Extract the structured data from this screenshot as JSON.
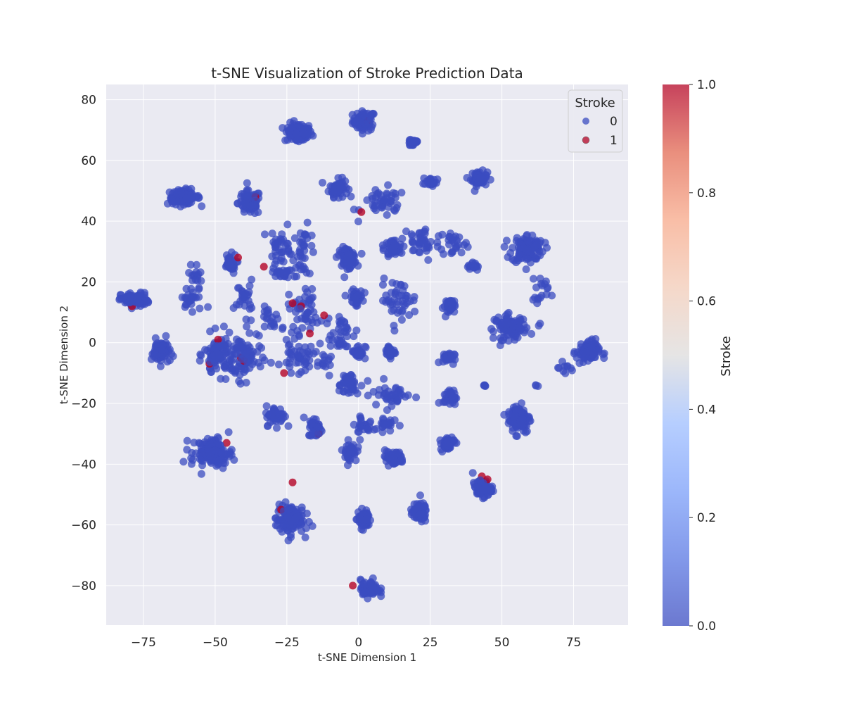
{
  "chart_data": {
    "type": "scatter",
    "title": "t-SNE Visualization of Stroke Prediction Data",
    "xlabel": "t-SNE Dimension 1",
    "ylabel": "t-SNE Dimension 2",
    "xlim": [
      -88,
      94
    ],
    "ylim": [
      -93,
      85
    ],
    "xticks": [
      -75,
      -50,
      -25,
      0,
      25,
      50,
      75
    ],
    "yticks": [
      -80,
      -60,
      -40,
      -20,
      0,
      20,
      40,
      60,
      80
    ],
    "grid": true,
    "colormap": "coolwarm",
    "colors": {
      "class0": "#3b4cc0",
      "class1": "#b40426",
      "plot_bg": "#eaeaf2",
      "grid": "#ffffff"
    },
    "legend": {
      "title": "Stroke",
      "placement": "top-right",
      "entries": [
        {
          "label": "0",
          "color": "#3b4cc0"
        },
        {
          "label": "1",
          "color": "#b40426"
        }
      ]
    },
    "colorbar": {
      "label": "Stroke",
      "range": [
        0.0,
        1.0
      ],
      "ticks": [
        "0.0",
        "0.2",
        "0.4",
        "0.6",
        "0.8",
        "1.0"
      ]
    },
    "series": [
      {
        "name": "0",
        "clusters": [
          {
            "cx": 2,
            "cy": 73,
            "sx": 2.5,
            "sy": 2.0,
            "n": 60
          },
          {
            "cx": -21,
            "cy": 69,
            "sx": 3.0,
            "sy": 2.0,
            "n": 80
          },
          {
            "cx": 19,
            "cy": 66,
            "sx": 1.5,
            "sy": 1.0,
            "n": 18
          },
          {
            "cx": -7,
            "cy": 51,
            "sx": 2.0,
            "sy": 1.8,
            "n": 45
          },
          {
            "cx": 25,
            "cy": 53,
            "sx": 1.5,
            "sy": 1.2,
            "n": 18
          },
          {
            "cx": 42,
            "cy": 54,
            "sx": 1.8,
            "sy": 1.5,
            "n": 45
          },
          {
            "cx": -61,
            "cy": 48,
            "sx": 3.5,
            "sy": 1.5,
            "n": 90
          },
          {
            "cx": -38,
            "cy": 46,
            "sx": 2.5,
            "sy": 2.5,
            "n": 60
          },
          {
            "cx": 9,
            "cy": 46,
            "sx": 5.0,
            "sy": 3.0,
            "n": 35
          },
          {
            "cx": -27,
            "cy": 32,
            "sx": 2.5,
            "sy": 4.5,
            "n": 28
          },
          {
            "cx": -19,
            "cy": 30,
            "sx": 2.5,
            "sy": 5.0,
            "n": 28
          },
          {
            "cx": -4,
            "cy": 28,
            "sx": 2.0,
            "sy": 2.0,
            "n": 55
          },
          {
            "cx": 12,
            "cy": 31,
            "sx": 2.0,
            "sy": 2.0,
            "n": 40
          },
          {
            "cx": 22,
            "cy": 33,
            "sx": 4.0,
            "sy": 4.0,
            "n": 30
          },
          {
            "cx": 33,
            "cy": 33,
            "sx": 3.0,
            "sy": 3.0,
            "n": 20
          },
          {
            "cx": 59,
            "cy": 31,
            "sx": 3.5,
            "sy": 3.0,
            "n": 90
          },
          {
            "cx": -45,
            "cy": 26,
            "sx": 1.5,
            "sy": 2.0,
            "n": 30
          },
          {
            "cx": -57,
            "cy": 22,
            "sx": 1.5,
            "sy": 3.0,
            "n": 12
          },
          {
            "cx": -27,
            "cy": 23,
            "sx": 2.0,
            "sy": 1.0,
            "n": 18
          },
          {
            "cx": 40,
            "cy": 25,
            "sx": 1.2,
            "sy": 1.0,
            "n": 15
          },
          {
            "cx": -78,
            "cy": 14,
            "sx": 3.0,
            "sy": 1.5,
            "n": 70
          },
          {
            "cx": -58,
            "cy": 14,
            "sx": 3.0,
            "sy": 3.0,
            "n": 20
          },
          {
            "cx": -40,
            "cy": 15,
            "sx": 2.0,
            "sy": 3.5,
            "n": 20
          },
          {
            "cx": -19,
            "cy": 11,
            "sx": 3.5,
            "sy": 5.0,
            "n": 35
          },
          {
            "cx": -1,
            "cy": 15,
            "sx": 1.5,
            "sy": 1.5,
            "n": 35
          },
          {
            "cx": 14,
            "cy": 14,
            "sx": 4.0,
            "sy": 4.0,
            "n": 35
          },
          {
            "cx": 32,
            "cy": 12,
            "sx": 1.5,
            "sy": 1.5,
            "n": 28
          },
          {
            "cx": -30,
            "cy": 7,
            "sx": 2.5,
            "sy": 3.0,
            "n": 18
          },
          {
            "cx": 53,
            "cy": 5,
            "sx": 3.5,
            "sy": 2.5,
            "n": 80
          },
          {
            "cx": 63,
            "cy": 17,
            "sx": 2.0,
            "sy": 6.0,
            "n": 15
          },
          {
            "cx": -69,
            "cy": -3,
            "sx": 2.0,
            "sy": 2.5,
            "n": 55
          },
          {
            "cx": -49,
            "cy": -4,
            "sx": 3.0,
            "sy": 4.0,
            "n": 70
          },
          {
            "cx": -40,
            "cy": -5,
            "sx": 4.0,
            "sy": 5.0,
            "n": 70
          },
          {
            "cx": -21,
            "cy": -5,
            "sx": 3.5,
            "sy": 3.0,
            "n": 35
          },
          {
            "cx": -6,
            "cy": 3,
            "sx": 3.5,
            "sy": 3.5,
            "n": 30
          },
          {
            "cx": 0,
            "cy": -3,
            "sx": 1.5,
            "sy": 1.5,
            "n": 22
          },
          {
            "cx": 11,
            "cy": -3,
            "sx": 1.5,
            "sy": 1.2,
            "n": 22
          },
          {
            "cx": 31,
            "cy": -5,
            "sx": 1.5,
            "sy": 1.2,
            "n": 20
          },
          {
            "cx": 80,
            "cy": -3,
            "sx": 2.5,
            "sy": 2.5,
            "n": 60
          },
          {
            "cx": -12,
            "cy": -7,
            "sx": 1.5,
            "sy": 1.5,
            "n": 10
          },
          {
            "cx": -4,
            "cy": -14,
            "sx": 3.0,
            "sy": 2.5,
            "n": 30
          },
          {
            "cx": 12,
            "cy": -17,
            "sx": 4.5,
            "sy": 3.0,
            "n": 30
          },
          {
            "cx": 32,
            "cy": -18,
            "sx": 1.5,
            "sy": 1.5,
            "n": 25
          },
          {
            "cx": 56,
            "cy": -25,
            "sx": 2.5,
            "sy": 3.0,
            "n": 95
          },
          {
            "cx": -29,
            "cy": -24,
            "sx": 2.0,
            "sy": 2.0,
            "n": 40
          },
          {
            "cx": -15,
            "cy": -28,
            "sx": 1.5,
            "sy": 2.0,
            "n": 35
          },
          {
            "cx": 2,
            "cy": -28,
            "sx": 3.0,
            "sy": 3.0,
            "n": 20
          },
          {
            "cx": 10,
            "cy": -26,
            "sx": 2.0,
            "sy": 2.0,
            "n": 15
          },
          {
            "cx": -3,
            "cy": -36,
            "sx": 1.5,
            "sy": 2.0,
            "n": 30
          },
          {
            "cx": 12,
            "cy": -38,
            "sx": 2.5,
            "sy": 1.5,
            "n": 40
          },
          {
            "cx": 31,
            "cy": -33,
            "sx": 1.5,
            "sy": 1.5,
            "n": 40
          },
          {
            "cx": -51,
            "cy": -36,
            "sx": 4.5,
            "sy": 3.0,
            "n": 100
          },
          {
            "cx": 43,
            "cy": -48,
            "sx": 2.0,
            "sy": 1.8,
            "n": 55
          },
          {
            "cx": -24,
            "cy": -58,
            "sx": 3.0,
            "sy": 3.0,
            "n": 100
          },
          {
            "cx": 2,
            "cy": -58,
            "sx": 1.5,
            "sy": 2.0,
            "n": 45
          },
          {
            "cx": 21,
            "cy": -56,
            "sx": 1.8,
            "sy": 2.0,
            "n": 55
          },
          {
            "cx": 4,
            "cy": -81,
            "sx": 2.0,
            "sy": 1.8,
            "n": 55
          },
          {
            "cx": 72,
            "cy": -8,
            "sx": 2.0,
            "sy": 2.0,
            "n": 8
          },
          {
            "cx": 44,
            "cy": -14,
            "sx": 0.5,
            "sy": 0.5,
            "n": 4
          },
          {
            "cx": 62,
            "cy": -14,
            "sx": 0.5,
            "sy": 0.5,
            "n": 2
          }
        ]
      },
      {
        "name": "1",
        "points": [
          [
            3,
            73
          ],
          [
            -36,
            48
          ],
          [
            -42,
            28
          ],
          [
            1,
            43
          ],
          [
            43,
            -44
          ],
          [
            45,
            -45
          ],
          [
            -23,
            -46
          ],
          [
            -27,
            -55
          ],
          [
            -49,
            1
          ],
          [
            -41,
            -5
          ],
          [
            -40,
            -6
          ],
          [
            -14,
            -30
          ],
          [
            -12,
            9
          ],
          [
            -20,
            12
          ],
          [
            -2,
            -80
          ],
          [
            -46,
            -33
          ],
          [
            -79,
            12
          ],
          [
            -38,
            46
          ],
          [
            -23,
            13
          ],
          [
            -52,
            -7
          ],
          [
            -33,
            25
          ],
          [
            -26,
            -10
          ],
          [
            -17,
            3
          ]
        ]
      }
    ]
  }
}
